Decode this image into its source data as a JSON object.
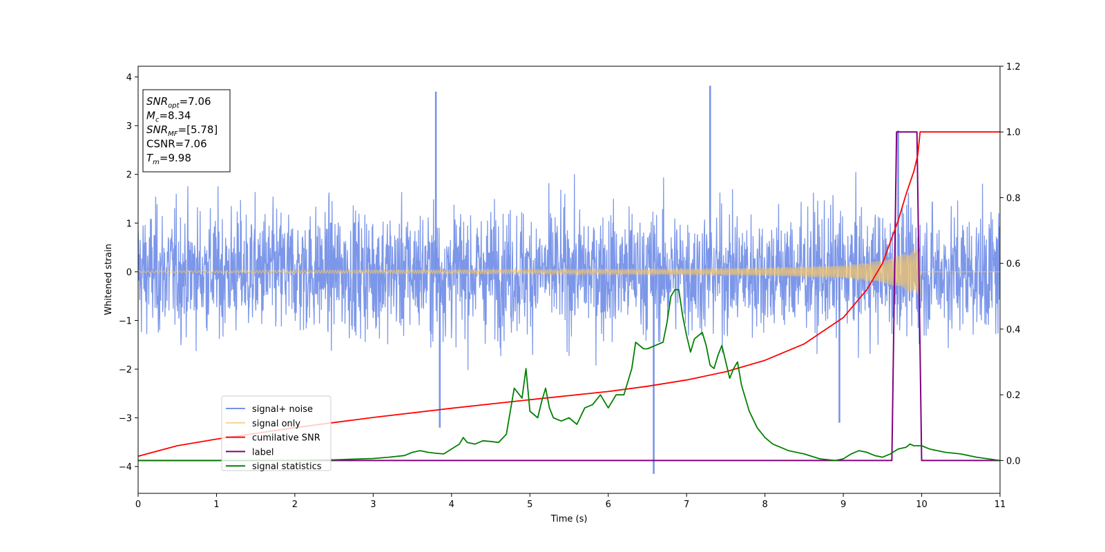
{
  "chart_data": {
    "type": "line",
    "xlabel": "Time (s)",
    "ylabel_left": "Whitened strain",
    "xlim": [
      0,
      11
    ],
    "ylim_left": [
      -4.55,
      4.22
    ],
    "ylim_right": [
      -0.1,
      1.2
    ],
    "x_ticks": [
      "0",
      "1",
      "2",
      "3",
      "4",
      "5",
      "6",
      "7",
      "8",
      "9",
      "10",
      "11"
    ],
    "y_ticks_left": [
      "−4",
      "−3",
      "−2",
      "−1",
      "0",
      "1",
      "2",
      "3",
      "4"
    ],
    "y_ticks_right": [
      "0.0",
      "0.2",
      "0.4",
      "0.6",
      "0.8",
      "1.0",
      "1.2"
    ],
    "legend_position": "lower-left",
    "annotation": [
      {
        "base": "SNR",
        "sub": "opt",
        "rest": "=7.06"
      },
      {
        "base": "M",
        "sub": "c",
        "rest": "=8.34"
      },
      {
        "base": "SNR",
        "sub": "MF",
        "rest": "=[5.78]"
      },
      {
        "base": "CSNR",
        "sub": "",
        "rest": "=7.06"
      },
      {
        "base": "T",
        "sub": "m",
        "rest": "=9.98"
      }
    ],
    "series": [
      {
        "name": "signal+ noise",
        "axis": "left",
        "color": "#7591e8",
        "style": "noise",
        "description": "dense noise band approx ±2.2 strain, occasional spikes",
        "spikes": [
          [
            3.8,
            3.7
          ],
          [
            7.3,
            3.82
          ],
          [
            6.58,
            -4.15
          ],
          [
            3.85,
            -3.2
          ],
          [
            9.7,
            2.9
          ],
          [
            8.95,
            -3.1
          ]
        ]
      },
      {
        "name": "signal only",
        "axis": "left",
        "color": "#f2c46b",
        "style": "chirp",
        "amplitude": [
          [
            0,
            0.02
          ],
          [
            4,
            0.04
          ],
          [
            7,
            0.06
          ],
          [
            8,
            0.08
          ],
          [
            9,
            0.13
          ],
          [
            9.5,
            0.23
          ],
          [
            9.8,
            0.38
          ],
          [
            9.98,
            0.5
          ]
        ]
      },
      {
        "name": "cumilative SNR",
        "axis": "right",
        "color": "#ff0000",
        "x": [
          0,
          0.5,
          1,
          2,
          3,
          4,
          5,
          6,
          6.5,
          7,
          7.5,
          8,
          8.5,
          9,
          9.3,
          9.5,
          9.7,
          9.8,
          9.9,
          9.95,
          9.98,
          11
        ],
        "values": [
          0.013,
          0.045,
          0.065,
          0.1,
          0.131,
          0.159,
          0.185,
          0.21,
          0.226,
          0.245,
          0.27,
          0.305,
          0.355,
          0.435,
          0.52,
          0.6,
          0.73,
          0.81,
          0.88,
          0.93,
          1.0,
          1.0
        ]
      },
      {
        "name": "label",
        "axis": "right",
        "color": "#800080",
        "x": [
          0,
          9.62,
          9.68,
          9.94,
          10.0,
          11
        ],
        "values": [
          0,
          0,
          1.0,
          1.0,
          0,
          0
        ]
      },
      {
        "name": "signal statistics",
        "axis": "right",
        "color": "#008000",
        "x": [
          0,
          1,
          2,
          2.5,
          3,
          3.2,
          3.4,
          3.5,
          3.6,
          3.7,
          3.8,
          3.9,
          4.0,
          4.1,
          4.15,
          4.2,
          4.3,
          4.4,
          4.5,
          4.6,
          4.7,
          4.8,
          4.9,
          4.95,
          5.0,
          5.1,
          5.15,
          5.2,
          5.25,
          5.3,
          5.4,
          5.5,
          5.6,
          5.7,
          5.8,
          5.9,
          6.0,
          6.1,
          6.2,
          6.3,
          6.35,
          6.4,
          6.45,
          6.5,
          6.6,
          6.7,
          6.75,
          6.8,
          6.85,
          6.9,
          6.95,
          7.0,
          7.05,
          7.1,
          7.15,
          7.2,
          7.25,
          7.3,
          7.35,
          7.4,
          7.45,
          7.5,
          7.55,
          7.6,
          7.65,
          7.7,
          7.8,
          7.9,
          8.0,
          8.1,
          8.2,
          8.3,
          8.5,
          8.7,
          8.9,
          9.0,
          9.1,
          9.2,
          9.3,
          9.4,
          9.5,
          9.6,
          9.7,
          9.8,
          9.85,
          9.9,
          9.95,
          10.0,
          10.1,
          10.3,
          10.5,
          10.7,
          11
        ],
        "values": [
          0,
          0,
          0,
          0.002,
          0.006,
          0.01,
          0.015,
          0.025,
          0.03,
          0.025,
          0.022,
          0.02,
          0.035,
          0.05,
          0.07,
          0.055,
          0.05,
          0.06,
          0.058,
          0.055,
          0.08,
          0.22,
          0.19,
          0.28,
          0.15,
          0.13,
          0.18,
          0.22,
          0.16,
          0.13,
          0.12,
          0.13,
          0.11,
          0.16,
          0.17,
          0.2,
          0.16,
          0.2,
          0.2,
          0.28,
          0.36,
          0.35,
          0.34,
          0.34,
          0.35,
          0.36,
          0.42,
          0.5,
          0.52,
          0.52,
          0.44,
          0.38,
          0.33,
          0.37,
          0.38,
          0.39,
          0.35,
          0.29,
          0.28,
          0.32,
          0.35,
          0.3,
          0.25,
          0.28,
          0.3,
          0.23,
          0.15,
          0.1,
          0.07,
          0.05,
          0.04,
          0.03,
          0.02,
          0.005,
          0.0,
          0.005,
          0.02,
          0.03,
          0.025,
          0.015,
          0.01,
          0.02,
          0.035,
          0.04,
          0.05,
          0.045,
          0.045,
          0.045,
          0.035,
          0.025,
          0.02,
          0.01,
          0.0
        ]
      }
    ]
  }
}
